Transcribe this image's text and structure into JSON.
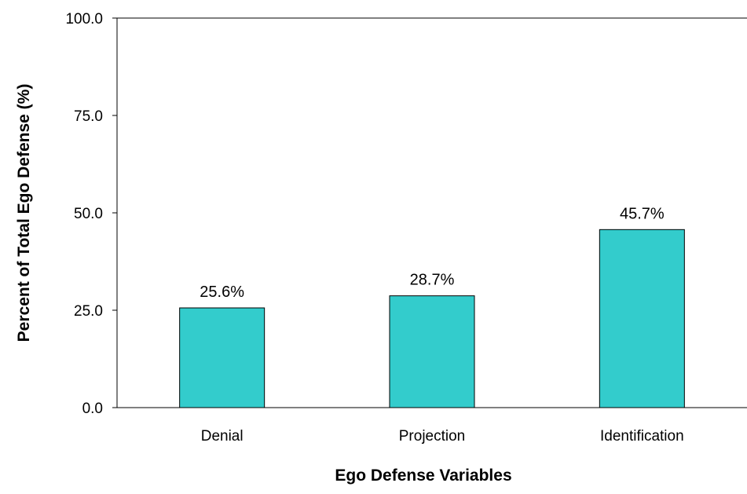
{
  "chart_data": {
    "type": "bar",
    "title": "",
    "xlabel": "Ego Defense Variables",
    "ylabel": "Percent of Total Ego Defense (%)",
    "categories": [
      "Denial",
      "Projection",
      "Identification"
    ],
    "values": [
      25.6,
      28.7,
      45.7
    ],
    "value_labels": [
      "25.6%",
      "28.7%",
      "45.7%"
    ],
    "ylim": [
      0,
      100
    ],
    "yticks": [
      0,
      25,
      50,
      75,
      100
    ],
    "ytick_labels": [
      "0.0",
      "25.0",
      "50.0",
      "75.0",
      "100.0"
    ],
    "grid": false,
    "legend": "none",
    "bar_color": "#33CCCC",
    "bar_edge_color": "#000000"
  }
}
